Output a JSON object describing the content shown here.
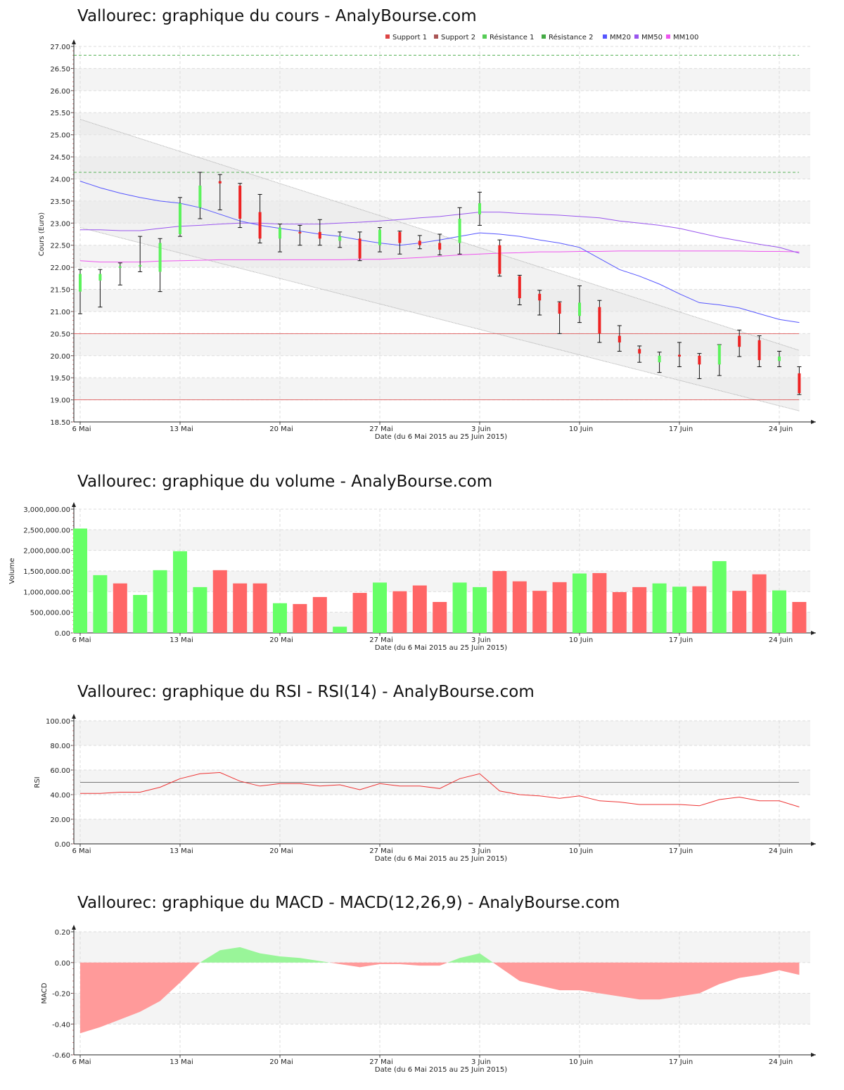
{
  "page": {
    "background": "#ffffff"
  },
  "colors": {
    "up": "#5cf25c",
    "down": "#ee2222",
    "vol_up": "#66ff66",
    "vol_down": "#ff6666",
    "mm20": "#5555ff",
    "mm50": "#9955ee",
    "mm100": "#ee55ee",
    "support": "#dd4444",
    "resistance": "#44aa44",
    "rsi": "#ee3333",
    "macd_pos": "#99f599",
    "macd_neg": "#ff9a9a"
  },
  "x_axis": {
    "title": "Date (du 6 Mai 2015 au 25 Juin 2015)",
    "ticks": [
      {
        "label": "6 Mai",
        "index": 0
      },
      {
        "label": "13 Mai",
        "index": 5
      },
      {
        "label": "20 Mai",
        "index": 10
      },
      {
        "label": "27 Mai",
        "index": 15
      },
      {
        "label": "3 Juin",
        "index": 20
      },
      {
        "label": "10 Juin",
        "index": 25
      },
      {
        "label": "17 Juin",
        "index": 30
      },
      {
        "label": "24 Juin",
        "index": 35
      }
    ]
  },
  "chart_data": [
    {
      "type": "candlestick",
      "title": "Vallourec: graphique du cours - AnalyBourse.com",
      "ylabel": "Cours (Euro)",
      "ylim": [
        18.5,
        27.0
      ],
      "yticks": [
        "18.50",
        "19.00",
        "19.50",
        "20.00",
        "20.50",
        "21.00",
        "21.50",
        "22.00",
        "22.50",
        "23.00",
        "23.50",
        "24.00",
        "24.50",
        "25.00",
        "25.50",
        "26.00",
        "26.50",
        "27.00"
      ],
      "legend": {
        "position": "top-right",
        "items": [
          {
            "label": "Support 1",
            "color": "#dd4444"
          },
          {
            "label": "Support 2",
            "color": "#aa5555"
          },
          {
            "label": "Résistance 1",
            "color": "#55cc55"
          },
          {
            "label": "Résistance 2",
            "color": "#44aa44"
          },
          {
            "label": "MM20",
            "color": "#5555ff"
          },
          {
            "label": "MM50",
            "color": "#9955ee"
          },
          {
            "label": "MM100",
            "color": "#ee55ee"
          }
        ]
      },
      "support_levels": [
        20.5,
        19.0
      ],
      "resistance_levels": [
        24.15,
        26.8
      ],
      "channel": {
        "upper": [
          25.35,
          20.12
        ],
        "lower": [
          22.9,
          18.75
        ]
      },
      "candles": [
        {
          "o": 21.45,
          "h": 21.95,
          "l": 20.95,
          "c": 21.85
        },
        {
          "o": 21.7,
          "h": 21.95,
          "l": 21.1,
          "c": 21.85
        },
        {
          "o": 22.0,
          "h": 22.1,
          "l": 21.6,
          "c": 22.02
        },
        {
          "o": 22.05,
          "h": 22.7,
          "l": 21.9,
          "c": 22.05
        },
        {
          "o": 21.9,
          "h": 22.65,
          "l": 21.45,
          "c": 22.55
        },
        {
          "o": 22.75,
          "h": 23.58,
          "l": 22.7,
          "c": 23.45
        },
        {
          "o": 23.35,
          "h": 24.15,
          "l": 23.1,
          "c": 23.85
        },
        {
          "o": 23.95,
          "h": 24.1,
          "l": 23.3,
          "c": 23.9
        },
        {
          "o": 23.85,
          "h": 23.9,
          "l": 22.9,
          "c": 23.1
        },
        {
          "o": 23.25,
          "h": 23.65,
          "l": 22.55,
          "c": 22.65
        },
        {
          "o": 22.65,
          "h": 22.98,
          "l": 22.35,
          "c": 22.9
        },
        {
          "o": 22.8,
          "h": 22.95,
          "l": 22.5,
          "c": 22.78
        },
        {
          "o": 22.8,
          "h": 23.08,
          "l": 22.5,
          "c": 22.65
        },
        {
          "o": 22.6,
          "h": 22.8,
          "l": 22.45,
          "c": 22.7
        },
        {
          "o": 22.65,
          "h": 22.8,
          "l": 22.15,
          "c": 22.2
        },
        {
          "o": 22.5,
          "h": 22.9,
          "l": 22.35,
          "c": 22.85
        },
        {
          "o": 22.8,
          "h": 22.82,
          "l": 22.3,
          "c": 22.55
        },
        {
          "o": 22.6,
          "h": 22.72,
          "l": 22.42,
          "c": 22.5
        },
        {
          "o": 22.55,
          "h": 22.75,
          "l": 22.28,
          "c": 22.4
        },
        {
          "o": 22.55,
          "h": 23.35,
          "l": 22.3,
          "c": 23.1
        },
        {
          "o": 23.2,
          "h": 23.7,
          "l": 22.95,
          "c": 23.45
        },
        {
          "o": 22.5,
          "h": 22.62,
          "l": 21.8,
          "c": 21.85
        },
        {
          "o": 21.8,
          "h": 21.82,
          "l": 21.15,
          "c": 21.3
        },
        {
          "o": 21.4,
          "h": 21.48,
          "l": 20.92,
          "c": 21.25
        },
        {
          "o": 21.2,
          "h": 21.22,
          "l": 20.5,
          "c": 20.95
        },
        {
          "o": 20.9,
          "h": 21.58,
          "l": 20.75,
          "c": 21.2
        },
        {
          "o": 21.1,
          "h": 21.25,
          "l": 20.3,
          "c": 20.5
        },
        {
          "o": 20.45,
          "h": 20.68,
          "l": 20.1,
          "c": 20.3
        },
        {
          "o": 20.15,
          "h": 20.22,
          "l": 19.85,
          "c": 20.05
        },
        {
          "o": 19.85,
          "h": 20.08,
          "l": 19.62,
          "c": 20.0
        },
        {
          "o": 20.02,
          "h": 20.3,
          "l": 19.75,
          "c": 19.98
        },
        {
          "o": 20.0,
          "h": 20.05,
          "l": 19.48,
          "c": 19.8
        },
        {
          "o": 19.8,
          "h": 20.25,
          "l": 19.55,
          "c": 20.25
        },
        {
          "o": 20.45,
          "h": 20.58,
          "l": 19.98,
          "c": 20.2
        },
        {
          "o": 20.35,
          "h": 20.45,
          "l": 19.75,
          "c": 19.9
        },
        {
          "o": 19.88,
          "h": 20.1,
          "l": 19.75,
          "c": 19.98
        },
        {
          "o": 19.6,
          "h": 19.75,
          "l": 19.12,
          "c": 19.15
        }
      ],
      "mm20": [
        23.95,
        23.8,
        23.68,
        23.58,
        23.5,
        23.45,
        23.35,
        23.2,
        23.05,
        22.95,
        22.88,
        22.82,
        22.75,
        22.7,
        22.62,
        22.55,
        22.5,
        22.55,
        22.62,
        22.7,
        22.78,
        22.75,
        22.7,
        22.62,
        22.55,
        22.45,
        22.2,
        21.95,
        21.8,
        21.62,
        21.4,
        21.2,
        21.15,
        21.08,
        20.95,
        20.82,
        20.75
      ],
      "mm50": [
        22.85,
        22.85,
        22.83,
        22.83,
        22.88,
        22.93,
        22.95,
        22.98,
        23.0,
        23.0,
        22.98,
        22.98,
        22.98,
        23.0,
        23.02,
        23.05,
        23.08,
        23.12,
        23.15,
        23.2,
        23.25,
        23.25,
        23.22,
        23.2,
        23.18,
        23.15,
        23.12,
        23.05,
        23.0,
        22.95,
        22.88,
        22.78,
        22.68,
        22.6,
        22.52,
        22.45,
        22.32
      ],
      "mm100": [
        22.15,
        22.12,
        22.12,
        22.12,
        22.14,
        22.15,
        22.16,
        22.17,
        22.17,
        22.17,
        22.17,
        22.17,
        22.17,
        22.17,
        22.18,
        22.18,
        22.2,
        22.22,
        22.25,
        22.28,
        22.3,
        22.32,
        22.33,
        22.35,
        22.35,
        22.36,
        22.36,
        22.37,
        22.37,
        22.37,
        22.37,
        22.37,
        22.37,
        22.37,
        22.36,
        22.36,
        22.35
      ]
    },
    {
      "type": "bar",
      "title": "Vallourec: graphique du volume - AnalyBourse.com",
      "ylabel": "Volume",
      "ylim": [
        0,
        3000000
      ],
      "yticks": [
        "0.00",
        "500,000.00",
        "1,000,000.00",
        "1,500,000.00",
        "2,000,000.00",
        "2,500,000.00",
        "3,000,000.00"
      ],
      "values": [
        2530000,
        1400000,
        1200000,
        920000,
        1520000,
        1980000,
        1110000,
        1520000,
        1200000,
        1200000,
        720000,
        700000,
        870000,
        150000,
        970000,
        1220000,
        1010000,
        1150000,
        750000,
        1220000,
        1110000,
        1500000,
        1250000,
        1020000,
        1230000,
        1440000,
        1450000,
        990000,
        1110000,
        1200000,
        1120000,
        1130000,
        1740000,
        1020000,
        1420000,
        1030000,
        750000
      ],
      "up": [
        true,
        true,
        false,
        true,
        true,
        true,
        true,
        false,
        false,
        false,
        true,
        false,
        false,
        true,
        false,
        true,
        false,
        false,
        false,
        true,
        true,
        false,
        false,
        false,
        false,
        true,
        false,
        false,
        false,
        true,
        true,
        false,
        true,
        false,
        false,
        true,
        false
      ]
    },
    {
      "type": "line",
      "title": "Vallourec: graphique du RSI - RSI(14) - AnalyBourse.com",
      "ylabel": "RSI",
      "ylim": [
        0,
        100
      ],
      "yticks": [
        "0.00",
        "20.00",
        "40.00",
        "60.00",
        "80.00",
        "100.00"
      ],
      "reference": 50,
      "values": [
        41,
        41,
        42,
        42,
        46,
        53,
        57,
        58,
        51,
        47,
        49,
        49,
        47,
        48,
        44,
        49,
        47,
        47,
        45,
        53,
        57,
        43,
        40,
        39,
        37,
        39,
        35,
        34,
        32,
        32,
        32,
        31,
        36,
        38,
        35,
        35,
        30
      ]
    },
    {
      "type": "area",
      "title": "Vallourec: graphique du MACD - MACD(12,26,9) - AnalyBourse.com",
      "ylabel": "MACD",
      "ylim": [
        -0.6,
        0.2
      ],
      "yticks": [
        "-0.60",
        "-0.40",
        "-0.20",
        "0.00",
        "0.20"
      ],
      "values": [
        -0.46,
        -0.42,
        -0.37,
        -0.32,
        -0.25,
        -0.13,
        0.0,
        0.08,
        0.1,
        0.06,
        0.04,
        0.03,
        0.01,
        -0.01,
        -0.03,
        -0.01,
        -0.01,
        -0.02,
        -0.02,
        0.03,
        0.06,
        -0.03,
        -0.12,
        -0.15,
        -0.18,
        -0.18,
        -0.2,
        -0.22,
        -0.24,
        -0.24,
        -0.22,
        -0.2,
        -0.14,
        -0.1,
        -0.08,
        -0.05,
        -0.08
      ]
    }
  ]
}
